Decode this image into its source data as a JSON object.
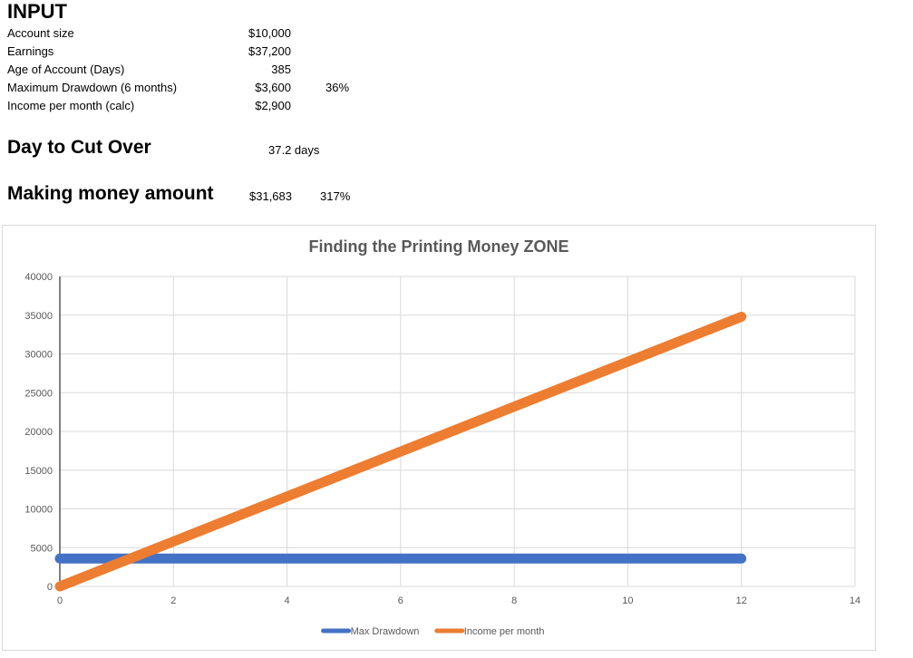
{
  "input": {
    "heading": "INPUT",
    "rows": [
      {
        "label": "Account size",
        "value": "$10,000",
        "extra": ""
      },
      {
        "label": "Earnings",
        "value": "$37,200",
        "extra": ""
      },
      {
        "label": "Age of Account (Days)",
        "value": "385",
        "extra": ""
      },
      {
        "label": "Maximum Drawdown (6 months)",
        "value": "$3,600",
        "extra": "36%"
      },
      {
        "label": "Income per month (calc)",
        "value": "$2,900",
        "extra": ""
      }
    ]
  },
  "cutover": {
    "heading": "Day to Cut Over",
    "value": "37.2 days"
  },
  "making": {
    "heading": "Making money amount",
    "value": "$31,683",
    "percent": "317%"
  },
  "chart_data": {
    "type": "line",
    "title": "Finding the Printing Money ZONE",
    "xlabel": "",
    "ylabel": "",
    "xlim": [
      0,
      14
    ],
    "ylim": [
      0,
      40000
    ],
    "x_ticks": [
      "0",
      "2",
      "4",
      "6",
      "8",
      "10",
      "12",
      "14"
    ],
    "y_ticks": [
      "0",
      "5000",
      "10000",
      "15000",
      "20000",
      "25000",
      "30000",
      "35000",
      "40000"
    ],
    "grid": true,
    "legend": "bottom",
    "series": [
      {
        "name": "Max Drawdown",
        "color": "#4472c4",
        "points": [
          [
            0,
            3600
          ],
          [
            12,
            3600
          ]
        ]
      },
      {
        "name": "Income per month",
        "color": "#ed7d31",
        "points": [
          [
            0,
            0
          ],
          [
            12,
            34800
          ]
        ]
      }
    ]
  }
}
